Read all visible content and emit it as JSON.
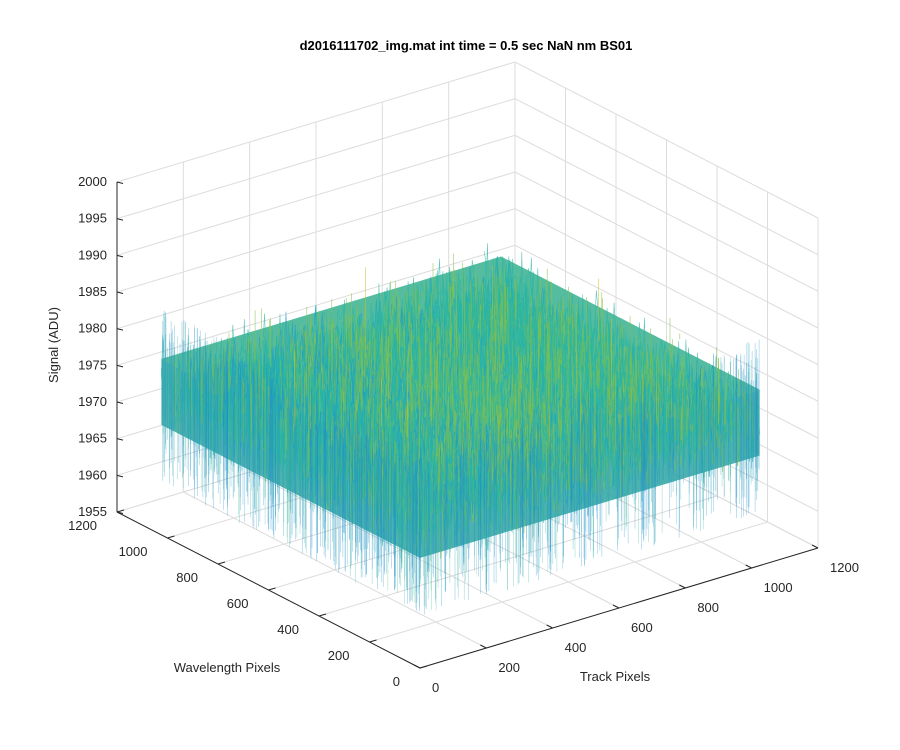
{
  "chart_data": {
    "type": "surface",
    "title": "d2016111702_img.mat int time = 0.5 sec  NaN nm BS01",
    "xlabel": "Track Pixels",
    "ylabel": "Wavelength Pixels",
    "zlabel": "Signal (ADU)",
    "xlim": [
      0,
      1200
    ],
    "ylim": [
      0,
      1200
    ],
    "zlim": [
      1955,
      2000
    ],
    "x_ticks": [
      0,
      200,
      400,
      600,
      800,
      1000,
      1200
    ],
    "y_ticks": [
      0,
      200,
      400,
      600,
      800,
      1000,
      1200
    ],
    "z_ticks": [
      1955,
      1960,
      1965,
      1970,
      1975,
      1980,
      1985,
      1990,
      1995,
      2000
    ],
    "x_range": [
      0,
      1024
    ],
    "y_range": [
      0,
      1024
    ],
    "signal_mean": 1975,
    "signal_min": 1960,
    "signal_max": 1995,
    "grid": true,
    "colormap": [
      "#0072bd",
      "#1e9ec8",
      "#2bb5a3",
      "#86c04a",
      "#c9c22a",
      "#f0e030"
    ]
  }
}
